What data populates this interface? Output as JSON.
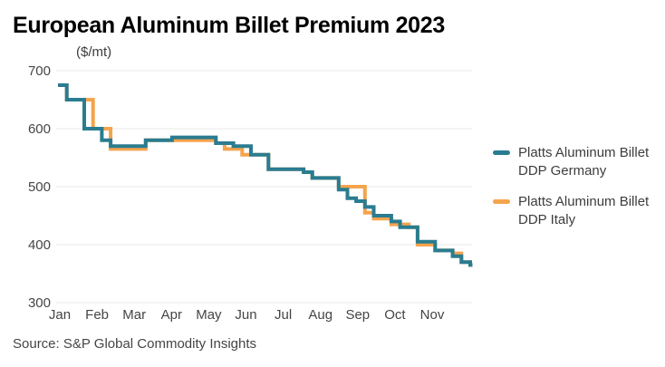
{
  "title": "European Aluminum Billet Premium 2023",
  "source": "Source: S&P Global Commodity Insights",
  "colors": {
    "germany_line": "#2A7C90",
    "italy_line": "#F4A44D",
    "gridline": "#E8E8E8",
    "axis_text": "#454545",
    "title_text": "#000000"
  },
  "chart_data": {
    "type": "line",
    "interpolation": "step-after",
    "title": "European Aluminum Billet Premium 2023",
    "ylabel": "($/mt)",
    "ylim": [
      300,
      700
    ],
    "yticks": [
      700,
      600,
      500,
      400,
      300
    ],
    "xticks": [
      "Jan",
      "Feb",
      "Mar",
      "Apr",
      "May",
      "Jun",
      "Jul",
      "Aug",
      "Sep",
      "Oct",
      "Nov"
    ],
    "grid": "horizontal",
    "legend_position": "right",
    "x_dates_approx": [
      "2023-01-06",
      "2023-01-13",
      "2023-01-20",
      "2023-01-27",
      "2023-02-03",
      "2023-02-10",
      "2023-02-17",
      "2023-02-24",
      "2023-03-03",
      "2023-03-10",
      "2023-03-17",
      "2023-03-24",
      "2023-03-31",
      "2023-04-07",
      "2023-04-14",
      "2023-04-21",
      "2023-04-28",
      "2023-05-05",
      "2023-05-12",
      "2023-05-19",
      "2023-05-26",
      "2023-06-02",
      "2023-06-09",
      "2023-06-16",
      "2023-06-23",
      "2023-06-30",
      "2023-07-07",
      "2023-07-14",
      "2023-07-21",
      "2023-07-28",
      "2023-08-04",
      "2023-08-11",
      "2023-08-18",
      "2023-08-25",
      "2023-09-01",
      "2023-09-08",
      "2023-09-15",
      "2023-09-22",
      "2023-09-29",
      "2023-10-06",
      "2023-10-13",
      "2023-10-20",
      "2023-10-27",
      "2023-11-03",
      "2023-11-10",
      "2023-11-17",
      "2023-11-24",
      "2023-12-01"
    ],
    "series": [
      {
        "name": "Platts Aluminum Billet DDP Germany",
        "color": "#2A7C90",
        "values": [
          675,
          650,
          650,
          600,
          600,
          580,
          570,
          570,
          570,
          570,
          580,
          580,
          580,
          585,
          585,
          585,
          585,
          585,
          575,
          575,
          570,
          570,
          555,
          555,
          530,
          530,
          530,
          530,
          525,
          515,
          515,
          515,
          495,
          480,
          475,
          465,
          450,
          450,
          440,
          430,
          430,
          405,
          405,
          390,
          390,
          380,
          370,
          365
        ]
      },
      {
        "name": "Platts Aluminum Billet DDP Italy",
        "color": "#F4A44D",
        "values": [
          675,
          650,
          650,
          650,
          600,
          600,
          565,
          565,
          565,
          565,
          580,
          580,
          580,
          580,
          580,
          580,
          580,
          580,
          575,
          565,
          565,
          555,
          555,
          555,
          530,
          530,
          530,
          530,
          525,
          515,
          515,
          515,
          500,
          500,
          500,
          455,
          445,
          445,
          435,
          435,
          430,
          400,
          400,
          390,
          390,
          385,
          370,
          365
        ]
      }
    ]
  }
}
